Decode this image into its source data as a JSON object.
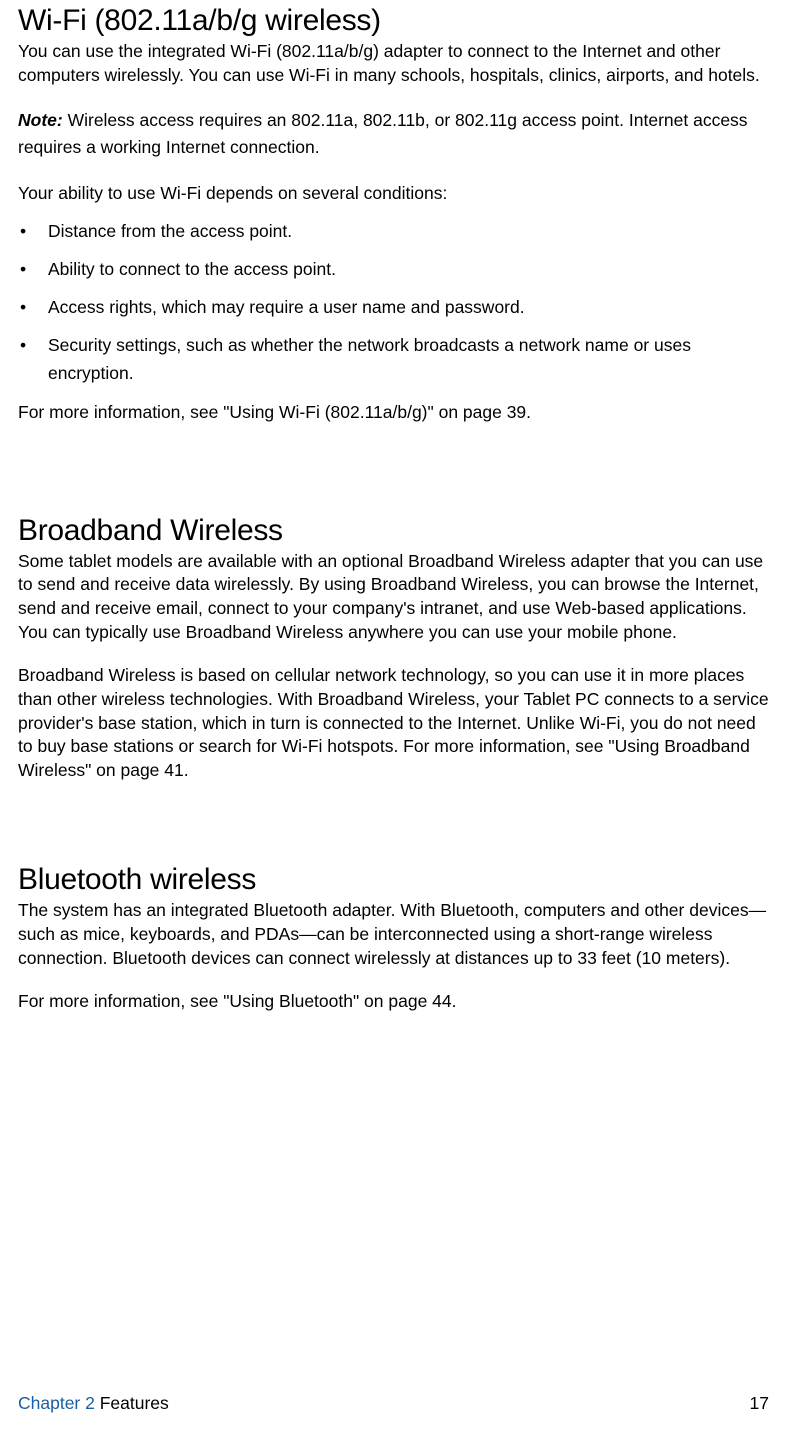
{
  "sections": [
    {
      "heading": "Wi-Fi (802.11a/b/g wireless)",
      "intro": "You can use the integrated Wi-Fi (802.11a/b/g) adapter to connect to the Internet and other computers wirelessly. You can use Wi-Fi in many schools, hospitals, clinics, airports, and hotels.",
      "note_label": "Note:",
      "note_body": " Wireless access requires an 802.11a, 802.11b, or 802.11g access point. Internet access requires a working Internet connection.",
      "conditions_intro": "Your ability to use Wi-Fi depends on several conditions:",
      "bullets": [
        "Distance from the access point.",
        "Ability to connect to the access point.",
        "Access rights, which may require a user name and password.",
        "Security settings, such as whether the network broadcasts a network name or uses encryption."
      ],
      "cross_ref": "For more information, see \"Using Wi-Fi (802.11a/b/g)\" on page 39."
    },
    {
      "heading": "Broadband Wireless",
      "p1": "Some tablet models are available with an optional Broadband Wireless adapter that you can use to send and receive data wirelessly. By using Broadband Wireless, you can browse the Internet, send and receive email, connect to your company's intranet, and use Web-based applications. You can typically use Broadband Wireless anywhere you can use your mobile phone.",
      "p2": "Broadband Wireless is based on cellular network technology, so you can use it in more places than other wireless technologies. With Broadband Wireless, your Tablet PC connects to a service provider's base station, which in turn is connected to the Internet. Unlike Wi-Fi, you do not need to buy base stations or search for Wi-Fi hotspots. For more information, see \"Using Broadband Wireless\" on page 41."
    },
    {
      "heading": "Bluetooth wireless",
      "p1": "The system has an integrated Bluetooth adapter. With Bluetooth, computers and other devices—such as mice, keyboards, and PDAs—can be interconnected using a short-range wireless connection. Bluetooth devices can connect wirelessly at distances up to 33 feet (10 meters).",
      "cross_ref": "For more information, see \"Using Bluetooth\" on page 44."
    }
  ],
  "footer": {
    "chapter_label": "Chapter 2",
    "chapter_title": "  Features",
    "page_number": "17"
  },
  "colors": {
    "text": "#000000",
    "chapter_link": "#1a5fa0",
    "background": "#ffffff"
  },
  "typography": {
    "heading_fontsize": 30,
    "body_fontsize": 17.5,
    "font_family": "Myriad Pro"
  }
}
